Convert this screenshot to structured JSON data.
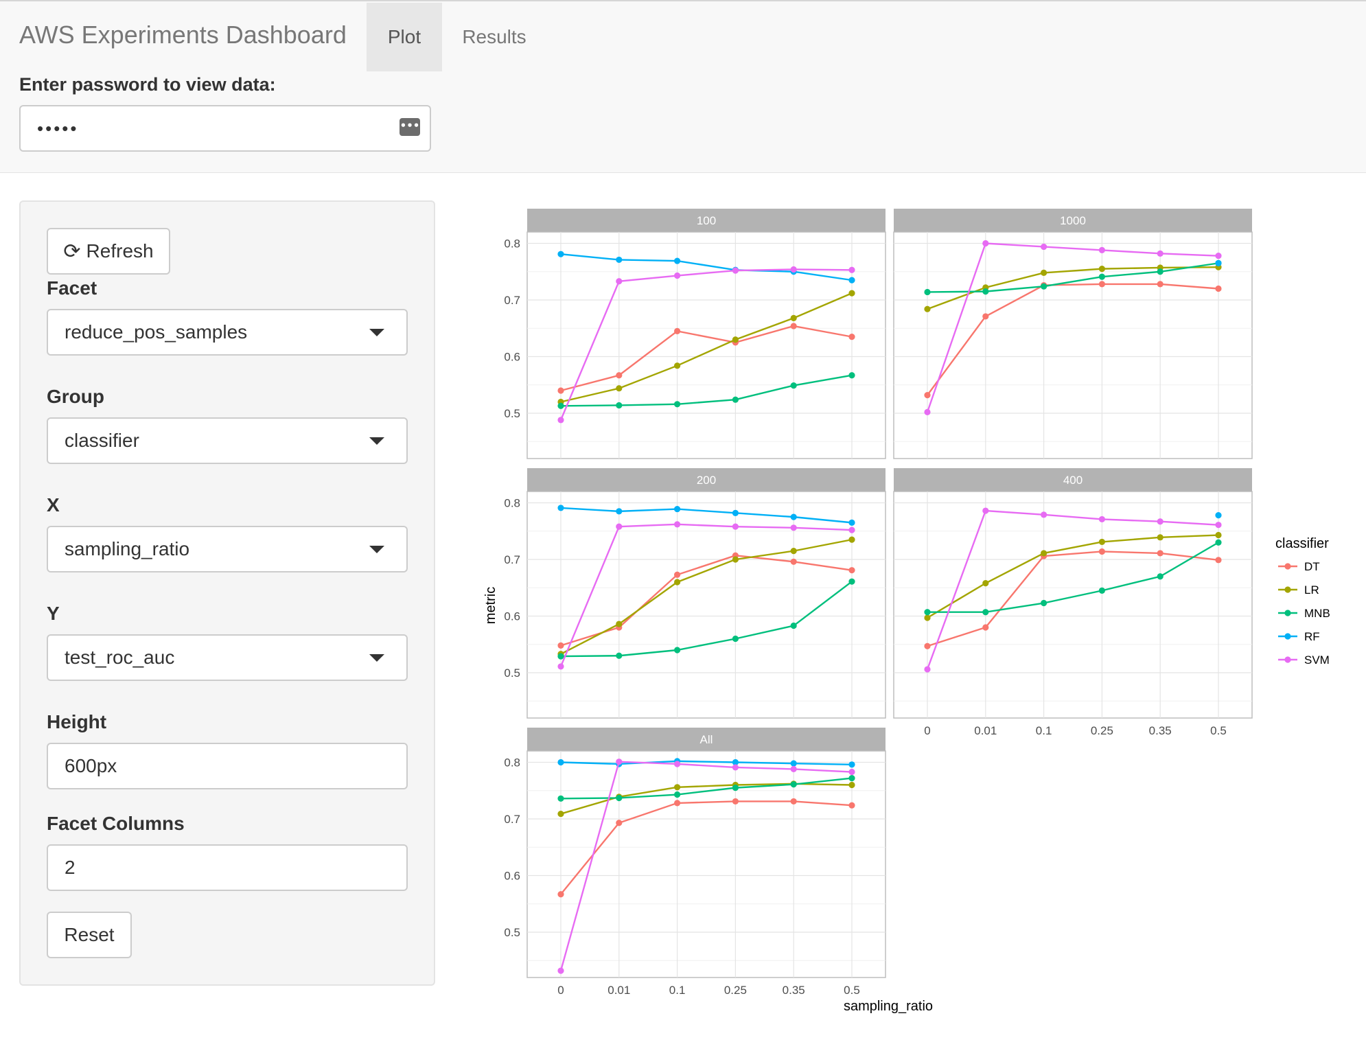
{
  "app": {
    "title": "AWS Experiments Dashboard",
    "tabs": [
      {
        "label": "Plot",
        "active": true
      },
      {
        "label": "Results",
        "active": false
      }
    ]
  },
  "password": {
    "label": "Enter password to view data:",
    "value": "•••••"
  },
  "sidebar": {
    "refresh_label": "Refresh",
    "facet_label": "Facet",
    "facet_value": "reduce_pos_samples",
    "group_label": "Group",
    "group_value": "classifier",
    "x_label": "X",
    "x_value": "sampling_ratio",
    "y_label": "Y",
    "y_value": "test_roc_auc",
    "height_label": "Height",
    "height_value": "600px",
    "facet_columns_label": "Facet Columns",
    "facet_columns_value": "2",
    "reset_label": "Reset"
  },
  "chart_data": {
    "type": "line",
    "xlabel": "sampling_ratio",
    "ylabel": "metric",
    "categories": [
      "0",
      "0.01",
      "0.1",
      "0.25",
      "0.35",
      "0.5"
    ],
    "ylim": [
      0.42,
      0.82
    ],
    "yticks": [
      "0.5",
      "0.6",
      "0.7",
      "0.8"
    ],
    "grid": true,
    "legend": {
      "title": "classifier",
      "position": "right",
      "entries": [
        {
          "name": "DT",
          "color": "#F8766D"
        },
        {
          "name": "LR",
          "color": "#A3A500"
        },
        {
          "name": "MNB",
          "color": "#00BF7D"
        },
        {
          "name": "RF",
          "color": "#00B0F6"
        },
        {
          "name": "SVM",
          "color": "#E76BF3"
        }
      ]
    },
    "facets": [
      {
        "title": "100",
        "series": [
          {
            "name": "DT",
            "values": [
              0.54,
              0.567,
              0.645,
              0.625,
              0.654,
              0.635
            ]
          },
          {
            "name": "LR",
            "values": [
              0.52,
              0.544,
              0.584,
              0.63,
              0.668,
              0.712
            ]
          },
          {
            "name": "MNB",
            "values": [
              0.513,
              0.514,
              0.516,
              0.524,
              0.549,
              0.567
            ]
          },
          {
            "name": "RF",
            "values": [
              0.781,
              0.771,
              0.769,
              0.753,
              0.75,
              0.735
            ]
          },
          {
            "name": "SVM",
            "values": [
              0.488,
              0.733,
              0.743,
              0.752,
              0.754,
              0.753
            ]
          }
        ]
      },
      {
        "title": "1000",
        "series": [
          {
            "name": "DT",
            "values": [
              0.532,
              0.671,
              0.726,
              0.728,
              0.728,
              0.72
            ]
          },
          {
            "name": "LR",
            "values": [
              0.684,
              0.722,
              0.748,
              0.755,
              0.757,
              0.758
            ]
          },
          {
            "name": "MNB",
            "values": [
              0.714,
              0.715,
              0.724,
              0.741,
              0.75,
              0.765
            ]
          },
          {
            "name": "RF",
            "values": [
              null,
              null,
              null,
              null,
              null,
              0.765
            ]
          },
          {
            "name": "SVM",
            "values": [
              0.502,
              0.8,
              0.794,
              0.788,
              0.782,
              0.778
            ]
          }
        ]
      },
      {
        "title": "200",
        "series": [
          {
            "name": "DT",
            "values": [
              0.548,
              0.58,
              0.673,
              0.707,
              0.696,
              0.681
            ]
          },
          {
            "name": "LR",
            "values": [
              0.533,
              0.586,
              0.66,
              0.7,
              0.715,
              0.735
            ]
          },
          {
            "name": "MNB",
            "values": [
              0.529,
              0.53,
              0.54,
              0.56,
              0.583,
              0.661
            ]
          },
          {
            "name": "RF",
            "values": [
              0.791,
              0.785,
              0.789,
              0.782,
              0.775,
              0.765
            ]
          },
          {
            "name": "SVM",
            "values": [
              0.511,
              0.758,
              0.762,
              0.758,
              0.756,
              0.752
            ]
          }
        ]
      },
      {
        "title": "400",
        "series": [
          {
            "name": "DT",
            "values": [
              0.547,
              0.58,
              0.706,
              0.714,
              0.711,
              0.699
            ]
          },
          {
            "name": "LR",
            "values": [
              0.597,
              0.658,
              0.711,
              0.731,
              0.739,
              0.743
            ]
          },
          {
            "name": "MNB",
            "values": [
              0.607,
              0.607,
              0.623,
              0.645,
              0.67,
              0.73
            ]
          },
          {
            "name": "RF",
            "values": [
              null,
              null,
              null,
              null,
              null,
              0.778
            ]
          },
          {
            "name": "SVM",
            "values": [
              0.506,
              0.786,
              0.779,
              0.771,
              0.767,
              0.761
            ]
          }
        ]
      },
      {
        "title": "All",
        "series": [
          {
            "name": "DT",
            "values": [
              0.567,
              0.693,
              0.728,
              0.731,
              0.731,
              0.724
            ]
          },
          {
            "name": "LR",
            "values": [
              0.709,
              0.739,
              0.756,
              0.76,
              0.762,
              0.76
            ]
          },
          {
            "name": "MNB",
            "values": [
              0.736,
              0.737,
              0.743,
              0.755,
              0.761,
              0.772
            ]
          },
          {
            "name": "RF",
            "values": [
              0.8,
              0.797,
              0.802,
              0.8,
              0.798,
              0.796
            ]
          },
          {
            "name": "SVM",
            "values": [
              0.432,
              0.801,
              0.797,
              0.791,
              0.788,
              0.783
            ]
          }
        ]
      }
    ]
  }
}
